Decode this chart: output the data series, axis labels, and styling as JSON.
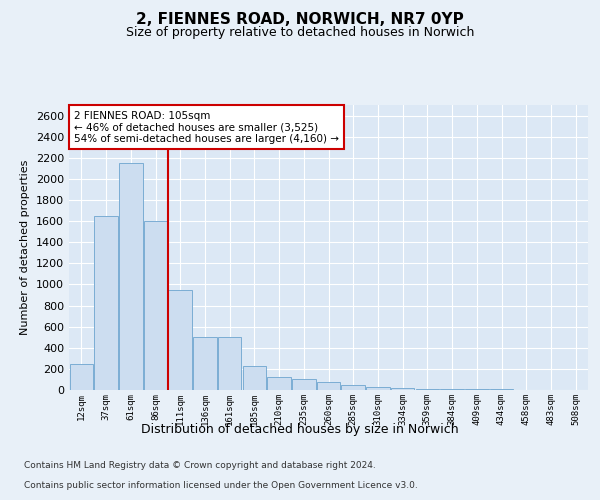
{
  "title1": "2, FIENNES ROAD, NORWICH, NR7 0YP",
  "title2": "Size of property relative to detached houses in Norwich",
  "xlabel": "Distribution of detached houses by size in Norwich",
  "ylabel": "Number of detached properties",
  "bar_color": "#ccddf0",
  "bar_edge_color": "#7badd4",
  "vline_color": "#cc0000",
  "vline_x_index": 4,
  "annotation_text": "2 FIENNES ROAD: 105sqm\n← 46% of detached houses are smaller (3,525)\n54% of semi-detached houses are larger (4,160) →",
  "annotation_box_color": "#ffffff",
  "annotation_box_edge_color": "#cc0000",
  "footer1": "Contains HM Land Registry data © Crown copyright and database right 2024.",
  "footer2": "Contains public sector information licensed under the Open Government Licence v3.0.",
  "categories": [
    "12sqm",
    "37sqm",
    "61sqm",
    "86sqm",
    "111sqm",
    "136sqm",
    "161sqm",
    "185sqm",
    "210sqm",
    "235sqm",
    "260sqm",
    "285sqm",
    "310sqm",
    "334sqm",
    "359sqm",
    "384sqm",
    "409sqm",
    "434sqm",
    "458sqm",
    "483sqm",
    "508sqm"
  ],
  "values": [
    250,
    1650,
    2150,
    1600,
    950,
    500,
    500,
    225,
    125,
    100,
    75,
    50,
    30,
    20,
    10,
    10,
    5,
    5,
    2,
    2,
    2
  ],
  "ylim": [
    0,
    2700
  ],
  "yticks": [
    0,
    200,
    400,
    600,
    800,
    1000,
    1200,
    1400,
    1600,
    1800,
    2000,
    2200,
    2400,
    2600
  ],
  "background_color": "#e8f0f8",
  "plot_background": "#dce8f5",
  "title_fontsize": 11,
  "subtitle_fontsize": 9
}
